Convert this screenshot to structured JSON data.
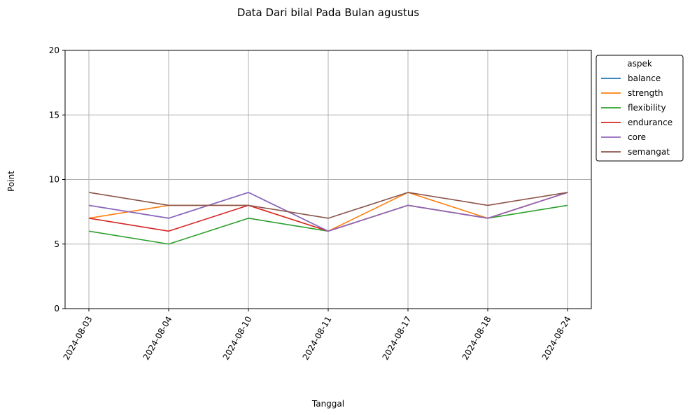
{
  "chart_data": {
    "type": "line",
    "title": "Data Dari bilal Pada Bulan agustus",
    "xlabel": "Tanggal",
    "ylabel": "Point",
    "ylim": [
      0,
      20
    ],
    "yticks": [
      0,
      5,
      10,
      15,
      20
    ],
    "grid": true,
    "legend_position": "outside-right",
    "legend_title": "aspek",
    "x": [
      "2024-08-03",
      "2024-08-04",
      "2024-08-10",
      "2024-08-11",
      "2024-08-17",
      "2024-08-18",
      "2024-08-24"
    ],
    "series": [
      {
        "name": "balance",
        "color": "#1f77b4",
        "values": [
          8,
          7,
          9,
          6,
          8,
          7,
          9
        ]
      },
      {
        "name": "strength",
        "color": "#ff7f0e",
        "values": [
          7,
          8,
          8,
          6,
          9,
          7,
          9
        ]
      },
      {
        "name": "flexibility",
        "color": "#2ca02c",
        "values": [
          6,
          5,
          7,
          6,
          8,
          7,
          8
        ]
      },
      {
        "name": "endurance",
        "color": "#d62728",
        "values": [
          7,
          6,
          8,
          6,
          8,
          7,
          9
        ]
      },
      {
        "name": "core",
        "color": "#9467bd",
        "values": [
          8,
          7,
          9,
          6,
          8,
          7,
          9
        ]
      },
      {
        "name": "semangat",
        "color": "#8c564b",
        "values": [
          9,
          8,
          8,
          7,
          9,
          8,
          9
        ]
      }
    ]
  }
}
